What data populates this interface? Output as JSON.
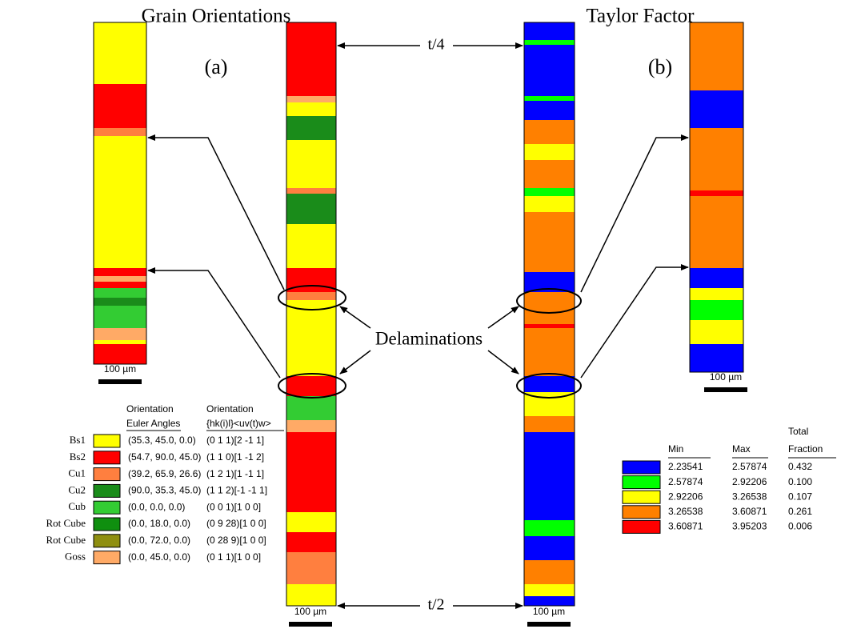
{
  "panels": {
    "left_title": "Grain Orientations",
    "right_title": "Taylor Factor",
    "label_a": "(a)",
    "label_b": "(b)"
  },
  "annotations": {
    "top": "t/4",
    "bottom": "t/2",
    "delaminations": "Delaminations"
  },
  "scale_bars": [
    "100 µm",
    "100 µm",
    "100 µm",
    "100 µm"
  ],
  "orientation_legend": {
    "headers": [
      [
        "Orientation",
        "Euler Angles"
      ],
      [
        "Orientation",
        "{hk(i)l}<uv(t)w>"
      ]
    ],
    "rows": [
      {
        "name": "Bs1",
        "color": "#ffff00",
        "euler": "(35.3, 45.0, 0.0)",
        "index": "(0 1 1)[2 -1 1]"
      },
      {
        "name": "Bs2",
        "color": "#ff0000",
        "euler": "(54.7, 90.0, 45.0)",
        "index": "(1 1 0)[1 -1 2]"
      },
      {
        "name": "Cu1",
        "color": "#ff7f3f",
        "euler": "(39.2, 65.9, 26.6)",
        "index": "(1 2 1)[1 -1 1]"
      },
      {
        "name": "Cu2",
        "color": "#1a8c1a",
        "euler": "(90.0, 35.3, 45.0)",
        "index": "(1 1 2)[-1 -1 1]"
      },
      {
        "name": "Cub",
        "color": "#33cc33",
        "euler": "(0.0, 0.0, 0.0)",
        "index": "(0 0 1)[1 0 0]"
      },
      {
        "name": "Rot Cube",
        "color": "#0f8f0f",
        "euler": "(0.0, 18.0, 0.0)",
        "index": "(0 9 28)[1 0 0]"
      },
      {
        "name": "Rot Cube",
        "color": "#8f8f10",
        "euler": "(0.0, 72.0, 0.0)",
        "index": "(0 28 9)[1 0 0]"
      },
      {
        "name": "Goss",
        "color": "#ffaa66",
        "euler": "(0.0, 45.0, 0.0)",
        "index": "(0 1 1)[1 0 0]"
      }
    ]
  },
  "taylor_legend": {
    "headers": {
      "min": "Min",
      "max": "Max",
      "fraction": [
        "Total",
        "Fraction"
      ]
    },
    "rows": [
      {
        "color": "#0000ff",
        "min": "2.23541",
        "max": "2.57874",
        "fraction": "0.432"
      },
      {
        "color": "#00ff00",
        "min": "2.57874",
        "max": "2.92206",
        "fraction": "0.100"
      },
      {
        "color": "#ffff00",
        "min": "2.92206",
        "max": "3.26538",
        "fraction": "0.107"
      },
      {
        "color": "#ff8000",
        "min": "3.26538",
        "max": "3.60871",
        "fraction": "0.261"
      },
      {
        "color": "#ff0000",
        "min": "3.60871",
        "max": "3.95203",
        "fraction": "0.006"
      }
    ]
  }
}
